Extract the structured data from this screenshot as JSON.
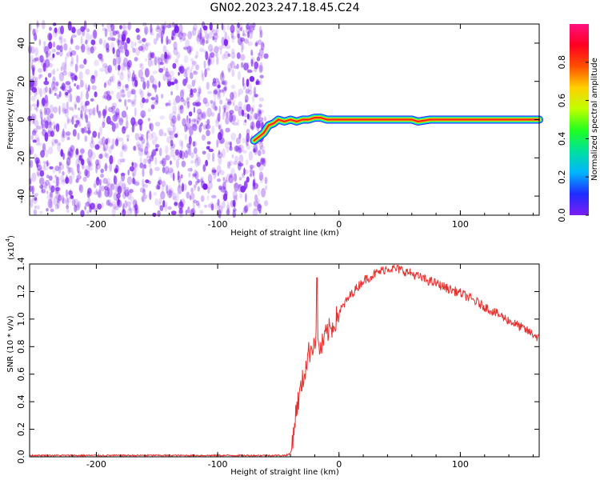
{
  "title": "GN02.2023.247.18.45.C24",
  "colors": {
    "specgram_noise": "#7a1ff0",
    "snr_line": "#e8302c"
  },
  "chart_data": [
    {
      "type": "heatmap",
      "panel": "top",
      "xlabel": "Height of straight line (km)",
      "ylabel": "Frequency (Hz)",
      "xlim": [
        -255,
        165
      ],
      "ylim": [
        -50,
        50
      ],
      "x_ticks": [
        -200,
        -100,
        0,
        100
      ],
      "x_tick_labels": [
        "-200",
        "-100",
        "0",
        "100"
      ],
      "y_ticks": [
        40,
        20,
        0,
        -20,
        -40
      ],
      "y_tick_labels": [
        "40",
        "20",
        "0",
        "-20",
        "-40"
      ],
      "noise_region_x": [
        -255,
        -60
      ],
      "trace": {
        "x": [
          -70,
          -62,
          -58,
          -54,
          -50,
          -45,
          -40,
          -35,
          -30,
          -25,
          -20,
          -15,
          -10,
          0,
          20,
          40,
          60,
          65,
          75,
          80,
          100,
          120,
          140,
          165
        ],
        "y": [
          -11,
          -7,
          -3,
          -2,
          0,
          -1,
          0,
          -1,
          0,
          0,
          1,
          1,
          0,
          0,
          0,
          0,
          0,
          -1,
          0,
          0,
          0,
          0,
          0,
          0
        ]
      },
      "colorbar": {
        "label": "Normalized spectral amplitude",
        "range": [
          0,
          1
        ],
        "ticks": [
          0.0,
          0.2,
          0.4,
          0.6,
          0.8
        ],
        "tick_labels": [
          "0.0",
          "0.2",
          "0.4",
          "0.6",
          "0.8"
        ],
        "colors": [
          "#7a1ff0",
          "#1f2bff",
          "#00b4ff",
          "#00e0a0",
          "#20ff20",
          "#c0ff00",
          "#ffd000",
          "#ff5000",
          "#ff0020",
          "#ff1080"
        ]
      }
    },
    {
      "type": "line",
      "panel": "bottom",
      "xlabel": "Height of straight line (km)",
      "ylabel": "SNR (10 * v/v)",
      "y_multiplier_label": "(x10",
      "y_multiplier_exp": "4",
      "y_multiplier_close": ")",
      "xlim": [
        -255,
        165
      ],
      "ylim": [
        0,
        1.4
      ],
      "x_ticks": [
        -200,
        -100,
        0,
        100
      ],
      "x_tick_labels": [
        "-200",
        "-100",
        "0",
        "100"
      ],
      "y_ticks": [
        0.0,
        0.2,
        0.4,
        0.6,
        0.8,
        1.0,
        1.2,
        1.4
      ],
      "y_tick_labels": [
        "0.0",
        "0.2",
        "0.4",
        "0.6",
        "0.8",
        "1.0",
        "1.2",
        "1.4"
      ],
      "series": [
        {
          "x": [
            -255,
            -240,
            -220,
            -200,
            -180,
            -160,
            -140,
            -120,
            -100,
            -80,
            -60,
            -45,
            -40,
            -38,
            -35,
            -30,
            -25,
            -20,
            -18,
            -15,
            -10,
            -5,
            0,
            10,
            20,
            30,
            40,
            50,
            60,
            70,
            80,
            90,
            100,
            110,
            120,
            130,
            140,
            150,
            160,
            165
          ],
          "y": [
            0.01,
            0.01,
            0.01,
            0.01,
            0.01,
            0.01,
            0.01,
            0.01,
            0.01,
            0.01,
            0.01,
            0.01,
            0.02,
            0.15,
            0.35,
            0.55,
            0.75,
            0.85,
            0.82,
            0.78,
            0.9,
            0.95,
            1.05,
            1.18,
            1.28,
            1.33,
            1.37,
            1.36,
            1.33,
            1.29,
            1.26,
            1.22,
            1.19,
            1.14,
            1.09,
            1.04,
            0.99,
            0.94,
            0.89,
            0.86
          ]
        }
      ]
    }
  ]
}
